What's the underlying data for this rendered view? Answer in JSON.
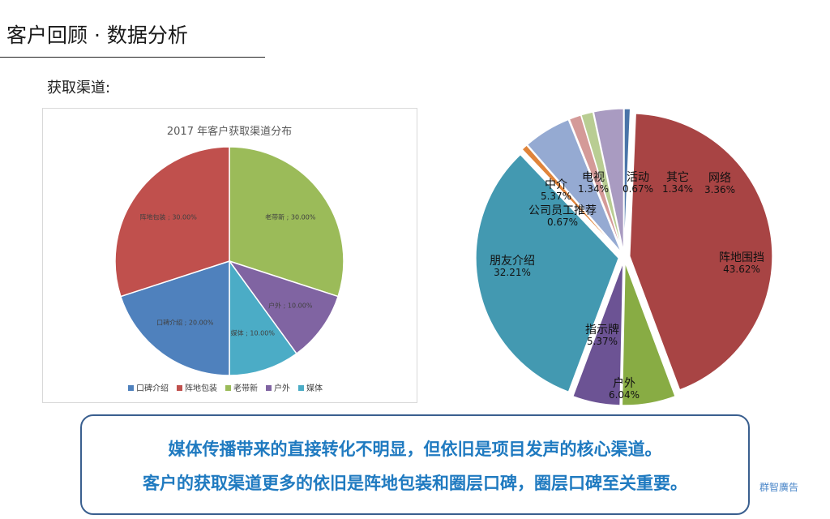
{
  "page": {
    "title": "客户回顾 · 数据分析",
    "section_label": "获取渠道:",
    "summary_line1": "媒体传播带来的直接转化不明显，但依旧是项目发声的核心渠道。",
    "summary_line2": "客户的获取渠道更多的依旧是阵地包装和圈层口碑，圈层口碑至关重要。",
    "brand": "群智廣告"
  },
  "chart_data": [
    {
      "type": "pie",
      "title": "2017 年客户获取渠道分布",
      "legend_position": "bottom",
      "slices": [
        {
          "name": "老带新",
          "value": 30.0,
          "label": "老带新 ; 30.00%",
          "color": "#9bbb59"
        },
        {
          "name": "户外",
          "value": 10.0,
          "label": "户外 ; 10.00%",
          "color": "#8064a2"
        },
        {
          "name": "媒体",
          "value": 10.0,
          "label": "媒体 ; 10.00%",
          "color": "#4bacc6"
        },
        {
          "name": "口碑介绍",
          "value": 20.0,
          "label": "口碑介绍 ; 20.00%",
          "color": "#4f81bd"
        },
        {
          "name": "阵地包装",
          "value": 30.0,
          "label": "阵地包装 ; 30.00%",
          "color": "#c0504d"
        }
      ],
      "legend_order": [
        "口碑介绍",
        "阵地包装",
        "老带新",
        "户外",
        "媒体"
      ]
    },
    {
      "type": "pie",
      "title": "",
      "slices": [
        {
          "name": "活动",
          "value": 0.67,
          "value_label": "0.67%",
          "color": "#4a74a8"
        },
        {
          "name": "阵地围挡",
          "value": 43.62,
          "value_label": "43.62%",
          "color": "#a84444"
        },
        {
          "name": "户外",
          "value": 6.04,
          "value_label": "6.04%",
          "color": "#88ac44"
        },
        {
          "name": "指示牌",
          "value": 5.37,
          "value_label": "5.37%",
          "color": "#6c5394"
        },
        {
          "name": "朋友介绍",
          "value": 32.21,
          "value_label": "32.21%",
          "color": "#4399b1"
        },
        {
          "name": "公司员工推荐",
          "value": 0.67,
          "value_label": "0.67%",
          "color": "#e0843a"
        },
        {
          "name": "中介",
          "value": 5.37,
          "value_label": "5.37%",
          "color": "#95aad2"
        },
        {
          "name": "电视",
          "value": 1.34,
          "value_label": "1.34%",
          "color": "#d49a98"
        },
        {
          "name": "其它",
          "value": 1.34,
          "value_label": "1.34%",
          "color": "#b9cd93"
        },
        {
          "name": "网络",
          "value": 3.36,
          "value_label": "3.36%",
          "color": "#a99bc1"
        }
      ]
    }
  ]
}
